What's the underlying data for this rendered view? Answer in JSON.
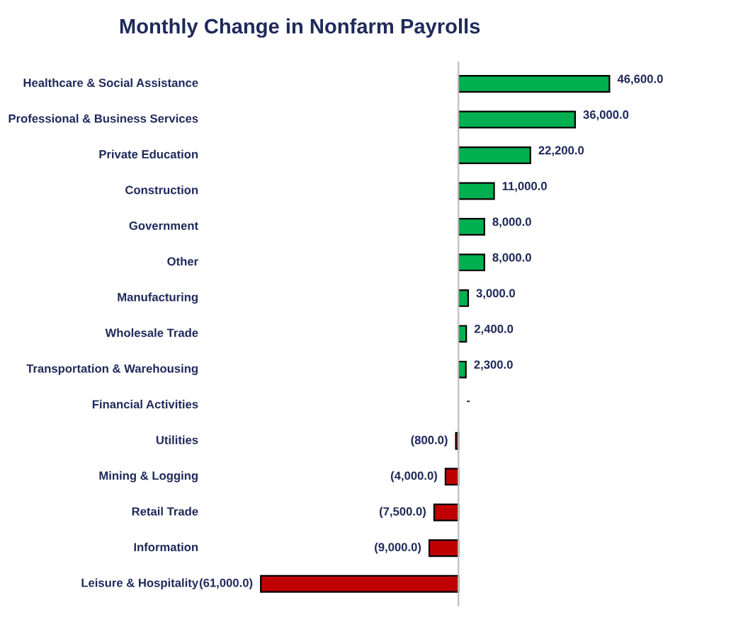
{
  "chart_data": {
    "type": "bar",
    "orientation": "horizontal",
    "title": "Monthly Change in Nonfarm Payrolls",
    "categories": [
      "Healthcare & Social Assistance",
      "Professional & Business Services",
      "Private Education",
      "Construction",
      "Government",
      "Other",
      "Manufacturing",
      "Wholesale Trade",
      "Transportation & Warehousing",
      "Financial Activities",
      "Utilities",
      "Mining & Logging",
      "Retail Trade",
      "Information",
      "Leisure & Hospitality"
    ],
    "values": [
      46600,
      36000,
      22200,
      11000,
      8000,
      8000,
      3000,
      2400,
      2300,
      0,
      -800,
      -4000,
      -7500,
      -9000,
      -61000
    ],
    "value_labels": [
      "46,600.0",
      "36,000.0",
      "22,200.0",
      "11,000.0",
      "8,000.0",
      "8,000.0",
      "3,000.0",
      "2,400.0",
      "2,300.0",
      "-",
      "(800.0)",
      "(4,000.0)",
      "(7,500.0)",
      "(9,000.0)",
      "(61,000.0)"
    ],
    "colors": [
      "#00b050",
      "#00b050",
      "#00b050",
      "#00b050",
      "#00b050",
      "#00b050",
      "#00b050",
      "#00b050",
      "#00b050",
      "#00b050",
      "#c00000",
      "#c00000",
      "#c00000",
      "#c00000",
      "#c00000"
    ],
    "tick_labels": "y"
  }
}
